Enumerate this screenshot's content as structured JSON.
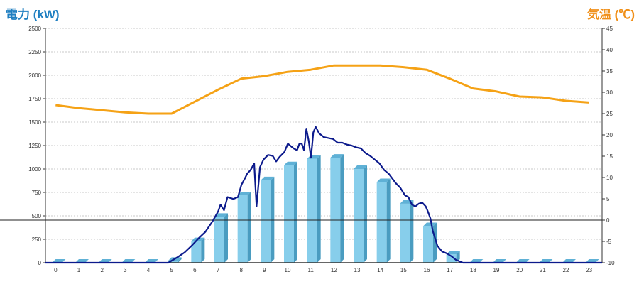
{
  "titles": {
    "left": "電力 (kW)",
    "right": "気温 (℃)"
  },
  "colors": {
    "left_title": "#1f7fc1",
    "right_title": "#f0901a",
    "bar_front": "#87ceeb",
    "bar_side": "#4a9cc0",
    "bar_top": "#5fb1d6",
    "power_line": "#0c1a8c",
    "temp_line": "#f5a216"
  },
  "chart_data": {
    "type": "bar",
    "categories": [
      "0",
      "1",
      "2",
      "3",
      "4",
      "5",
      "6",
      "7",
      "8",
      "9",
      "10",
      "11",
      "12",
      "13",
      "14",
      "15",
      "16",
      "17",
      "18",
      "19",
      "20",
      "21",
      "22",
      "23"
    ],
    "series": [
      {
        "axis": "left",
        "kind": "bar",
        "values": [
          0,
          0,
          0,
          0,
          0,
          20,
          230,
          490,
          720,
          880,
          1040,
          1110,
          1120,
          1000,
          860,
          630,
          390,
          90,
          0,
          0,
          0,
          0,
          0,
          0
        ]
      },
      {
        "axis": "left",
        "kind": "line",
        "x": [
          4.8,
          5.0,
          5.2,
          5.5,
          5.8,
          6.1,
          6.4,
          6.7,
          6.95,
          7.05,
          7.2,
          7.35,
          7.6,
          7.8,
          7.95,
          8.1,
          8.2,
          8.35,
          8.5,
          8.6,
          8.75,
          8.9,
          9.1,
          9.3,
          9.45,
          9.6,
          9.8,
          9.95,
          10.05,
          10.2,
          10.35,
          10.45,
          10.55,
          10.65,
          10.75,
          10.85,
          10.95,
          11.05,
          11.15,
          11.3,
          11.5,
          11.7,
          11.9,
          12.1,
          12.3,
          12.5,
          12.7,
          12.9,
          13.1,
          13.3,
          13.5,
          13.7,
          13.9,
          14.1,
          14.3,
          14.45,
          14.6,
          14.8,
          15.0,
          15.15,
          15.3,
          15.45,
          15.6,
          15.75,
          15.9,
          16.0,
          16.1,
          16.2,
          16.4,
          16.6,
          16.8,
          17.0,
          17.2,
          17.4,
          17.5,
          17.6
        ],
        "values": [
          0,
          30,
          60,
          110,
          180,
          260,
          330,
          440,
          550,
          620,
          560,
          700,
          680,
          700,
          830,
          900,
          950,
          990,
          1060,
          600,
          1020,
          1100,
          1150,
          1140,
          1080,
          1130,
          1180,
          1270,
          1250,
          1220,
          1200,
          1270,
          1270,
          1200,
          1430,
          1300,
          1120,
          1390,
          1450,
          1380,
          1340,
          1330,
          1320,
          1280,
          1280,
          1260,
          1250,
          1230,
          1220,
          1170,
          1140,
          1100,
          1060,
          990,
          950,
          900,
          850,
          800,
          720,
          700,
          620,
          600,
          630,
          640,
          600,
          540,
          470,
          340,
          180,
          120,
          100,
          70,
          30,
          10,
          0,
          0
        ]
      },
      {
        "axis": "right",
        "kind": "line",
        "values": [
          27.0,
          26.3,
          25.8,
          25.3,
          25.0,
          25.0,
          27.8,
          30.6,
          33.2,
          33.8,
          34.8,
          35.3,
          36.3,
          36.3,
          36.3,
          35.9,
          35.3,
          33.2,
          30.9,
          30.2,
          29.0,
          28.8,
          28.0,
          27.6
        ]
      }
    ],
    "y_left": {
      "ticks": [
        "0",
        "250",
        "500",
        "750",
        "1000",
        "1250",
        "1500",
        "1750",
        "2000",
        "2250",
        "2500"
      ],
      "range": [
        0,
        2500
      ]
    },
    "y_right": {
      "ticks": [
        "-10",
        "-5",
        "0",
        "5",
        "10",
        "15",
        "20",
        "25",
        "30",
        "35",
        "40",
        "45"
      ],
      "range": [
        -10,
        45
      ]
    },
    "grid": true
  }
}
